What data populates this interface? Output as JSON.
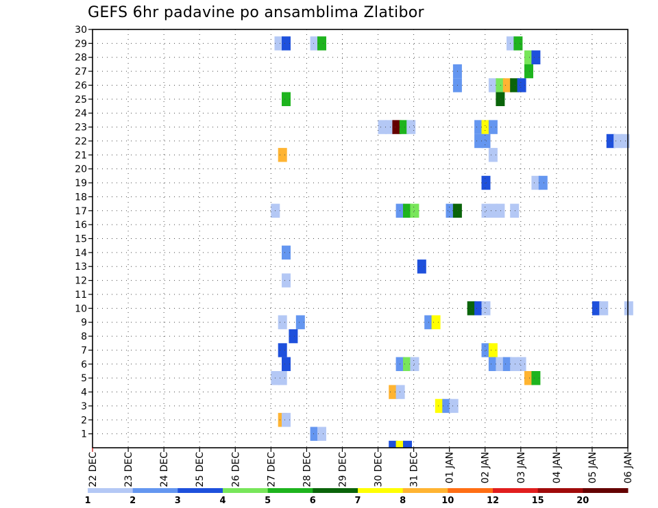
{
  "chart_data": {
    "type": "heatmap",
    "title": "GEFS 6hr padavine po ansamblima Zlatibor",
    "xlabel": "",
    "ylabel": "",
    "x_ticks": [
      "22 DEC",
      "23 DEC",
      "24 DEC",
      "25 DEC",
      "26 DEC",
      "27 DEC",
      "28 DEC",
      "29 DEC",
      "30 DEC",
      "31 DEC",
      "01 JAN",
      "02 JAN",
      "03 JAN",
      "04 JAN",
      "05 JAN",
      "06 JAN"
    ],
    "y_ticks": [
      1,
      2,
      3,
      4,
      5,
      6,
      7,
      8,
      9,
      10,
      11,
      12,
      13,
      14,
      15,
      16,
      17,
      18,
      19,
      20,
      21,
      22,
      23,
      24,
      25,
      26,
      27,
      28,
      29,
      30
    ],
    "x_step_hours": 6,
    "x_range_steps": [
      0,
      60
    ],
    "y_range": [
      0,
      30
    ],
    "grid": true,
    "legend_position": "bottom",
    "legend": {
      "labels": [
        "1",
        "2",
        "3",
        "4",
        "5",
        "6",
        "7",
        "8",
        "10",
        "12",
        "15",
        "20"
      ],
      "colors": [
        "#b4c8f5",
        "#6496f0",
        "#1e50dc",
        "#78e65a",
        "#1eb41e",
        "#0a640a",
        "#ffff00",
        "#ffb432",
        "#ff6e14",
        "#e11e1e",
        "#a00a0a",
        "#640000"
      ]
    },
    "cells": [
      [
        40,
        0,
        0
      ],
      [
        41,
        0,
        3
      ],
      [
        42,
        0,
        3
      ],
      [
        43,
        0,
        0
      ],
      [
        58,
        1,
        0
      ],
      [
        60,
        1,
        2
      ],
      [
        61,
        1,
        2
      ],
      [
        62,
        1,
        7
      ],
      [
        63,
        1,
        3
      ],
      [
        64,
        1,
        4
      ],
      [
        65,
        1,
        0
      ],
      [
        53,
        2,
        1
      ],
      [
        54,
        2,
        1
      ],
      [
        63,
        2,
        10
      ],
      [
        64,
        2,
        0
      ],
      [
        46,
        3,
        2
      ],
      [
        47,
        3,
        2
      ],
      [
        50,
        3,
        2
      ],
      [
        51,
        3,
        2
      ],
      [
        52,
        3,
        1
      ],
      [
        73,
        4,
        3
      ],
      [
        74,
        4,
        3
      ],
      [
        75,
        4,
        1
      ],
      [
        62,
        5,
        5
      ],
      [
        63,
        5,
        4
      ],
      [
        64,
        5,
        3
      ],
      [
        65,
        5,
        9
      ],
      [
        66,
        5,
        6
      ],
      [
        67,
        5,
        5
      ],
      [
        68,
        5,
        5
      ],
      [
        76,
        6,
        0
      ],
      [
        77,
        6,
        1
      ],
      [
        48,
        7,
        6
      ],
      [
        49,
        7,
        0
      ],
      [
        46,
        8,
        2
      ],
      [
        47,
        8,
        2
      ],
      [
        58,
        9,
        0
      ],
      [
        59,
        9,
        4
      ],
      [
        60,
        9,
        5
      ],
      [
        61,
        9,
        9
      ],
      [
        62,
        9,
        8
      ],
      [
        63,
        9,
        7
      ],
      [
        64,
        9,
        2
      ],
      [
        65,
        9,
        7
      ],
      [
        66,
        9,
        7
      ],
      [
        67,
        9,
        2
      ],
      [
        68,
        9,
        1
      ],
      [
        69,
        9,
        1
      ],
      [
        71,
        9,
        0
      ],
      [
        72,
        9,
        0
      ],
      [
        73,
        9,
        3
      ],
      [
        74,
        9,
        3
      ],
      [
        75,
        9,
        1
      ],
      [
        52,
        10,
        0
      ],
      [
        53,
        10,
        6
      ],
      [
        54,
        10,
        0
      ],
      [
        55,
        10,
        9
      ],
      [
        56,
        10,
        9
      ],
      [
        57,
        10,
        0
      ],
      [
        58,
        10,
        0
      ],
      [
        59,
        10,
        10
      ],
      [
        60,
        10,
        0
      ],
      [
        61,
        10,
        0
      ],
      [
        62,
        10,
        2
      ],
      [
        63,
        10,
        0
      ],
      [
        64,
        10,
        3
      ],
      [
        59,
        11,
        0
      ],
      [
        60,
        11,
        1
      ],
      [
        61,
        11,
        7
      ],
      [
        62,
        11,
        1
      ],
      [
        63,
        11,
        0
      ],
      [
        64,
        11,
        0
      ],
      [
        65,
        11,
        5
      ],
      [
        66,
        11,
        1
      ],
      [
        67,
        11,
        0
      ],
      [
        68,
        11,
        0
      ],
      [
        69,
        11,
        2
      ],
      [
        70,
        11,
        0
      ],
      [
        71,
        12,
        2
      ],
      [
        73,
        12,
        1
      ],
      [
        76,
        12,
        1
      ],
      [
        77,
        12,
        4
      ],
      [
        78,
        12,
        5
      ],
      [
        79,
        12,
        1
      ],
      [
        72,
        13,
        0
      ],
      [
        73,
        13,
        0
      ],
      [
        74,
        13,
        0
      ],
      [
        75,
        13,
        0
      ],
      [
        76,
        13,
        4
      ],
      [
        77,
        13,
        1
      ],
      [
        78,
        13,
        0
      ],
      [
        79,
        13,
        1
      ],
      [
        80,
        13,
        1
      ],
      [
        83,
        14,
        3
      ],
      [
        84,
        14,
        3
      ],
      [
        85,
        14,
        0
      ],
      [
        86,
        14,
        0
      ],
      [
        73,
        15,
        0
      ],
      [
        74,
        15,
        0
      ],
      [
        75,
        15,
        0
      ],
      [
        76,
        15,
        0
      ],
      [
        77,
        15,
        0
      ],
      [
        78,
        15,
        1
      ],
      [
        79,
        15,
        1
      ],
      [
        80,
        15,
        0
      ],
      [
        76,
        16,
        0
      ],
      [
        77,
        16,
        2
      ],
      [
        78,
        16,
        1
      ],
      [
        79,
        16,
        0
      ],
      [
        80,
        16,
        1
      ],
      [
        70,
        17,
        3
      ],
      [
        71,
        17,
        0
      ],
      [
        72,
        17,
        0
      ],
      [
        77,
        18,
        1
      ],
      [
        78,
        18,
        2
      ],
      [
        79,
        18,
        1
      ],
      [
        80,
        18,
        0
      ],
      [
        68,
        19,
        1
      ],
      [
        69,
        19,
        2
      ],
      [
        70,
        19,
        0
      ],
      [
        80,
        20,
        0
      ],
      [
        85,
        21,
        0
      ],
      [
        86,
        21,
        0
      ],
      [
        87,
        21,
        0
      ],
      [
        83,
        22,
        0
      ],
      [
        84,
        22,
        1
      ],
      [
        85,
        22,
        0
      ],
      [
        86,
        22,
        0
      ],
      [
        83,
        23,
        0
      ],
      [
        84,
        23,
        0
      ],
      [
        83,
        24,
        0
      ],
      [
        84,
        24,
        1
      ],
      [
        83,
        25,
        0
      ],
      [
        84,
        25,
        3
      ],
      [
        85,
        25,
        0
      ],
      [
        83,
        26,
        0
      ],
      [
        84,
        26,
        5
      ],
      [
        85,
        26,
        5
      ],
      [
        73,
        27,
        4
      ],
      [
        74,
        27,
        3
      ],
      [
        73,
        28,
        1
      ],
      [
        74,
        28,
        1
      ],
      [
        74,
        29,
        1
      ],
      [
        75,
        29,
        2
      ]
    ],
    "cells_overlay": [
      [
        33,
        5,
        7
      ],
      [
        41,
        5,
        3
      ],
      [
        53,
        5,
        2
      ],
      [
        56,
        5,
        3
      ],
      [
        57,
        5,
        3
      ],
      [
        58,
        5,
        3
      ],
      [
        59,
        5,
        0
      ],
      [
        60,
        5,
        0
      ],
      [
        62,
        5,
        3
      ],
      [
        63,
        5,
        1
      ],
      [
        64,
        5,
        1
      ],
      [
        68,
        5,
        0
      ],
      [
        41,
        8,
        2
      ],
      [
        42,
        8,
        0
      ],
      [
        54,
        8,
        4
      ],
      [
        55,
        8,
        3
      ],
      [
        60,
        8,
        1
      ],
      [
        47,
        16,
        1
      ],
      [
        48,
        16,
        5
      ],
      [
        49,
        16,
        4
      ],
      [
        55,
        16,
        1
      ],
      [
        56,
        16,
        1
      ],
      [
        58,
        16,
        0
      ],
      [
        59,
        16,
        2
      ],
      [
        43,
        21,
        3
      ],
      [
        44,
        21,
        2
      ],
      [
        45,
        21,
        2
      ],
      [
        46,
        21,
        0
      ],
      [
        47,
        21,
        0
      ],
      [
        48,
        21,
        0
      ],
      [
        52,
        22,
        3
      ],
      [
        53,
        22,
        3
      ],
      [
        54,
        22,
        1
      ],
      [
        55,
        22,
        1
      ],
      [
        56,
        22,
        1
      ],
      [
        40,
        24,
        4
      ],
      [
        41,
        24,
        4
      ],
      [
        42,
        24,
        0
      ],
      [
        40,
        25,
        0
      ],
      [
        41,
        25,
        1
      ],
      [
        42,
        25,
        1
      ],
      [
        49,
        26,
        1
      ],
      [
        50,
        26,
        1
      ],
      [
        51,
        26,
        0
      ],
      [
        46,
        27,
        0
      ],
      [
        47,
        27,
        0
      ],
      [
        48,
        27,
        1
      ]
    ],
    "shown_cells": [
      [
        5.1,
        29,
        0
      ],
      [
        5.3,
        29,
        2
      ],
      [
        6.1,
        29,
        0
      ],
      [
        6.3,
        29,
        4
      ],
      [
        5.3,
        25,
        4
      ],
      [
        5.2,
        21,
        7
      ],
      [
        5.0,
        17,
        0
      ],
      [
        5.3,
        14,
        1
      ],
      [
        5.3,
        12,
        0
      ],
      [
        5.2,
        9,
        0
      ],
      [
        5.7,
        9,
        1
      ],
      [
        5.5,
        8,
        2
      ],
      [
        5.2,
        7,
        2
      ],
      [
        5.3,
        6,
        2
      ],
      [
        5.0,
        5,
        0
      ],
      [
        5.2,
        5,
        0
      ],
      [
        5.2,
        2,
        7
      ],
      [
        5.3,
        2,
        0
      ],
      [
        6.1,
        1,
        1
      ],
      [
        6.3,
        1,
        0
      ],
      [
        8.0,
        23,
        0
      ],
      [
        8.2,
        23,
        0
      ],
      [
        8.4,
        23,
        11
      ],
      [
        8.6,
        23,
        4
      ],
      [
        8.8,
        23,
        0
      ],
      [
        8.5,
        17,
        1
      ],
      [
        8.7,
        17,
        4
      ],
      [
        8.9,
        17,
        3
      ],
      [
        9.1,
        13,
        2
      ],
      [
        9.3,
        9,
        1
      ],
      [
        9.5,
        9,
        6
      ],
      [
        8.5,
        6,
        1
      ],
      [
        8.7,
        6,
        3
      ],
      [
        8.9,
        6,
        0
      ],
      [
        8.3,
        4,
        7
      ],
      [
        8.5,
        4,
        0
      ],
      [
        9.6,
        3,
        6
      ],
      [
        9.8,
        3,
        1
      ],
      [
        10.0,
        3,
        0
      ],
      [
        8.3,
        0,
        2
      ],
      [
        8.5,
        0,
        6
      ],
      [
        8.7,
        0,
        2
      ],
      [
        10.1,
        27,
        1
      ],
      [
        10.1,
        26,
        1
      ],
      [
        9.9,
        17,
        1
      ],
      [
        10.1,
        17,
        5
      ],
      [
        10.5,
        10,
        5
      ],
      [
        10.7,
        10,
        2
      ],
      [
        10.9,
        10,
        0
      ],
      [
        10.7,
        23,
        1
      ],
      [
        10.9,
        23,
        6
      ],
      [
        11.1,
        23,
        1
      ],
      [
        10.7,
        22,
        1
      ],
      [
        10.9,
        22,
        1
      ],
      [
        11.1,
        21,
        0
      ],
      [
        10.9,
        19,
        2
      ],
      [
        10.9,
        17,
        0
      ],
      [
        11.1,
        17,
        0
      ],
      [
        11.3,
        17,
        0
      ],
      [
        11.7,
        17,
        0
      ],
      [
        10.9,
        7,
        1
      ],
      [
        11.1,
        7,
        6
      ],
      [
        11.1,
        6,
        1
      ],
      [
        11.3,
        6,
        0
      ],
      [
        11.5,
        6,
        1
      ],
      [
        11.7,
        6,
        0
      ],
      [
        11.9,
        6,
        0
      ],
      [
        11.6,
        29,
        0
      ],
      [
        11.8,
        29,
        4
      ],
      [
        11.1,
        26,
        0
      ],
      [
        11.3,
        26,
        3
      ],
      [
        11.5,
        26,
        7
      ],
      [
        11.7,
        26,
        5
      ],
      [
        11.9,
        26,
        2
      ],
      [
        11.3,
        25,
        5
      ],
      [
        12.1,
        28,
        3
      ],
      [
        12.3,
        28,
        2
      ],
      [
        12.1,
        27,
        4
      ],
      [
        12.1,
        5,
        7
      ],
      [
        12.3,
        5,
        4
      ],
      [
        12.3,
        19,
        0
      ],
      [
        12.5,
        19,
        1
      ],
      [
        14.0,
        10,
        2
      ],
      [
        14.2,
        10,
        0
      ],
      [
        14.9,
        10,
        0
      ],
      [
        14.4,
        22,
        2
      ],
      [
        14.6,
        22,
        0
      ],
      [
        14.8,
        22,
        0
      ]
    ]
  }
}
